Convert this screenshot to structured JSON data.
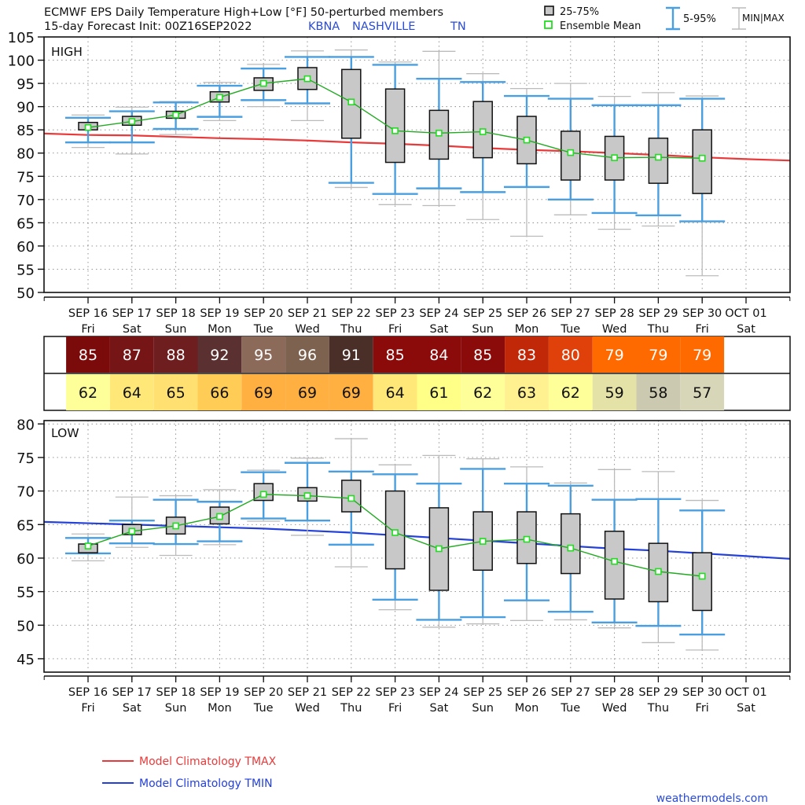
{
  "header": {
    "title_line1": "ECMWF EPS Daily Temperature High+Low [°F]  50-perturbed members",
    "title_line2": "15-day Forecast Init: 00Z16SEP2022",
    "station_code": "KBNA",
    "station_name": "NASHVILLE",
    "station_state": "TN"
  },
  "legend_top": {
    "box_label": "25-75%",
    "mean_label": "Ensemble Mean",
    "range_label": "5-95%",
    "minmax_label": "MIN|MAX"
  },
  "legend_bottom": {
    "tmax_label": "Model Climatology TMAX",
    "tmin_label": "Model Climatology TMIN"
  },
  "credit": "weathermodels.com",
  "colors": {
    "box_fill": "#c8c8c8",
    "mean_line": "#22aa22",
    "mean_marker": "#22dd22",
    "range_whisker": "#4a9fe0",
    "minmax_whisker": "#bbbbbb",
    "clim_tmax": "#e83a3a",
    "clim_tmin": "#2340d8"
  },
  "chart_data": [
    {
      "type": "box",
      "panel_label": "HIGH",
      "categories": [
        "SEP 16",
        "SEP 17",
        "SEP 18",
        "SEP 19",
        "SEP 20",
        "SEP 21",
        "SEP 22",
        "SEP 23",
        "SEP 24",
        "SEP 25",
        "SEP 26",
        "SEP 27",
        "SEP 28",
        "SEP 29",
        "SEP 30",
        "OCT 01"
      ],
      "weekdays": [
        "Fri",
        "Sat",
        "Sun",
        "Mon",
        "Tue",
        "Wed",
        "Thu",
        "Fri",
        "Sat",
        "Sun",
        "Mon",
        "Tue",
        "Wed",
        "Thu",
        "Fri",
        "Sat"
      ],
      "ylim": [
        50,
        105
      ],
      "yticks": [
        50,
        55,
        60,
        65,
        70,
        75,
        80,
        85,
        90,
        95,
        100,
        105
      ],
      "grid": true,
      "series": {
        "min": [
          81.2,
          79.8,
          84.0,
          87.0,
          90.0,
          87.0,
          72.6,
          68.9,
          68.7,
          65.7,
          62.1,
          66.7,
          63.6,
          64.3,
          53.6
        ],
        "p5": [
          82.3,
          82.3,
          85.2,
          87.8,
          91.4,
          90.7,
          73.6,
          71.2,
          72.4,
          71.6,
          72.7,
          70.0,
          67.1,
          66.6,
          65.3
        ],
        "p25": [
          85.0,
          86.0,
          87.5,
          91.0,
          93.5,
          93.7,
          83.2,
          78.0,
          78.7,
          79.0,
          77.7,
          74.2,
          74.2,
          73.5,
          71.3
        ],
        "mean": [
          85.5,
          86.8,
          88.2,
          92.0,
          95.0,
          96.0,
          91.0,
          84.8,
          84.3,
          84.6,
          82.8,
          80.1,
          79.0,
          79.1,
          78.9
        ],
        "p75": [
          86.6,
          87.9,
          89.0,
          93.2,
          96.2,
          98.4,
          98.0,
          93.8,
          89.2,
          91.1,
          87.9,
          84.7,
          83.6,
          83.2,
          85.0
        ],
        "p95": [
          87.6,
          89.0,
          90.9,
          94.5,
          98.2,
          100.7,
          100.7,
          99.0,
          96.0,
          95.3,
          92.3,
          91.7,
          90.3,
          90.3,
          91.7
        ],
        "max": [
          88.2,
          89.9,
          91.1,
          95.2,
          99.1,
          102.0,
          102.2,
          99.6,
          101.9,
          97.1,
          93.9,
          95.0,
          92.2,
          93.0,
          92.3
        ]
      },
      "climatology": {
        "name": "Model Climatology TMAX",
        "x": [
          "SEP 15",
          "SEP 16",
          "SEP 17",
          "SEP 18",
          "SEP 19",
          "SEP 20",
          "SEP 21",
          "SEP 22",
          "SEP 23",
          "SEP 24",
          "SEP 25",
          "SEP 26",
          "SEP 27",
          "SEP 28",
          "SEP 29",
          "SEP 30",
          "OCT 01",
          "OCT 02"
        ],
        "values": [
          84.2,
          83.9,
          83.8,
          83.5,
          83.2,
          83.0,
          82.7,
          82.3,
          82.0,
          81.6,
          81.1,
          80.7,
          80.4,
          80.0,
          79.6,
          79.1,
          78.7,
          78.4
        ]
      }
    },
    {
      "type": "table",
      "rows": [
        {
          "label": "HIGH",
          "values": [
            85,
            87,
            88,
            92,
            95,
            96,
            91,
            85,
            84,
            85,
            83,
            80,
            79,
            79,
            79
          ],
          "fills": [
            "#7b0a0a",
            "#751515",
            "#6e1e1e",
            "#5b3030",
            "#8c6a5a",
            "#7d6250",
            "#4a2e28",
            "#8b0a0a",
            "#8b0a0a",
            "#8b0a0a",
            "#c02808",
            "#e0400a",
            "#ff6a00",
            "#ff6a00",
            "#ff6a00"
          ]
        },
        {
          "label": "LOW",
          "values": [
            62,
            64,
            65,
            66,
            69,
            69,
            69,
            64,
            61,
            62,
            63,
            62,
            59,
            58,
            57
          ],
          "fills": [
            "#ffff99",
            "#ffe878",
            "#ffe070",
            "#ffcc55",
            "#ffb040",
            "#ffb040",
            "#ffb040",
            "#ffe878",
            "#ffff88",
            "#ffff99",
            "#fff090",
            "#ffff99",
            "#e5e2a8",
            "#cbcab0",
            "#d8d6b8"
          ]
        }
      ]
    },
    {
      "type": "box",
      "panel_label": "LOW",
      "categories": [
        "SEP 16",
        "SEP 17",
        "SEP 18",
        "SEP 19",
        "SEP 20",
        "SEP 21",
        "SEP 22",
        "SEP 23",
        "SEP 24",
        "SEP 25",
        "SEP 26",
        "SEP 27",
        "SEP 28",
        "SEP 29",
        "SEP 30",
        "OCT 01"
      ],
      "weekdays": [
        "Fri",
        "Sat",
        "Sun",
        "Mon",
        "Tue",
        "Wed",
        "Thu",
        "Fri",
        "Sat",
        "Sun",
        "Mon",
        "Tue",
        "Wed",
        "Thu",
        "Fri",
        "Sat"
      ],
      "ylim": [
        43,
        80.5
      ],
      "yticks": [
        45,
        50,
        55,
        60,
        65,
        70,
        75,
        80
      ],
      "grid": true,
      "series": {
        "min": [
          59.6,
          61.6,
          60.4,
          62.0,
          65.5,
          63.4,
          58.7,
          52.3,
          49.7,
          50.2,
          50.7,
          50.8,
          49.6,
          47.4,
          46.3
        ],
        "p5": [
          60.7,
          62.2,
          62.1,
          62.5,
          65.9,
          65.6,
          62.0,
          53.8,
          50.8,
          51.2,
          53.7,
          52.0,
          50.4,
          49.9,
          48.6
        ],
        "p25": [
          60.8,
          63.5,
          63.6,
          65.1,
          68.6,
          68.5,
          66.9,
          58.4,
          55.2,
          58.2,
          59.2,
          57.7,
          53.9,
          53.5,
          52.2
        ],
        "mean": [
          61.8,
          64.0,
          64.8,
          66.2,
          69.5,
          69.3,
          68.9,
          63.8,
          61.4,
          62.5,
          62.8,
          61.5,
          59.5,
          58.0,
          57.3
        ],
        "p75": [
          62.1,
          65.0,
          66.1,
          67.6,
          71.1,
          70.5,
          71.6,
          70.0,
          67.5,
          66.9,
          66.9,
          66.6,
          64.0,
          62.2,
          60.8
        ],
        "p95": [
          63.0,
          65.6,
          68.7,
          68.4,
          72.8,
          74.2,
          72.9,
          72.5,
          71.1,
          73.3,
          71.1,
          70.8,
          68.7,
          68.8,
          67.1
        ],
        "max": [
          63.6,
          69.1,
          69.3,
          70.2,
          73.1,
          74.9,
          77.8,
          73.9,
          75.3,
          74.8,
          73.6,
          71.2,
          73.2,
          72.9,
          68.6
        ]
      },
      "climatology": {
        "name": "Model Climatology TMIN",
        "x": [
          "SEP 15",
          "SEP 16",
          "SEP 17",
          "SEP 18",
          "SEP 19",
          "SEP 20",
          "SEP 21",
          "SEP 22",
          "SEP 23",
          "SEP 24",
          "SEP 25",
          "SEP 26",
          "SEP 27",
          "SEP 28",
          "SEP 29",
          "SEP 30",
          "OCT 01",
          "OCT 02"
        ],
        "values": [
          65.4,
          65.2,
          65.0,
          64.8,
          64.6,
          64.4,
          64.1,
          63.8,
          63.4,
          63.0,
          62.6,
          62.2,
          61.8,
          61.4,
          61.1,
          60.7,
          60.3,
          59.9
        ]
      }
    }
  ]
}
